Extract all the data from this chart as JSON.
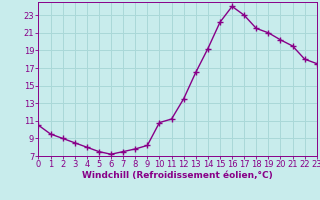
{
  "x": [
    0,
    1,
    2,
    3,
    4,
    5,
    6,
    7,
    8,
    9,
    10,
    11,
    12,
    13,
    14,
    15,
    16,
    17,
    18,
    19,
    20,
    21,
    22,
    23
  ],
  "y": [
    10.5,
    9.5,
    9.0,
    8.5,
    8.0,
    7.5,
    7.2,
    7.5,
    7.8,
    8.2,
    10.8,
    11.2,
    13.5,
    16.5,
    19.2,
    22.2,
    24.0,
    23.0,
    21.5,
    21.0,
    20.2,
    19.5,
    18.0,
    17.5
  ],
  "line_color": "#880088",
  "marker": "+",
  "bg_color": "#c8ecec",
  "grid_color": "#aad8d8",
  "xlabel": "Windchill (Refroidissement éolien,°C)",
  "xlabel_color": "#880088",
  "tick_color": "#880088",
  "ylim": [
    7,
    24.5
  ],
  "xlim": [
    0,
    23
  ],
  "yticks": [
    7,
    9,
    11,
    13,
    15,
    17,
    19,
    21,
    23
  ],
  "xticks": [
    0,
    1,
    2,
    3,
    4,
    5,
    6,
    7,
    8,
    9,
    10,
    11,
    12,
    13,
    14,
    15,
    16,
    17,
    18,
    19,
    20,
    21,
    22,
    23
  ],
  "linewidth": 1.0,
  "markersize": 4,
  "tick_fontsize": 6.0,
  "xlabel_fontsize": 6.5
}
